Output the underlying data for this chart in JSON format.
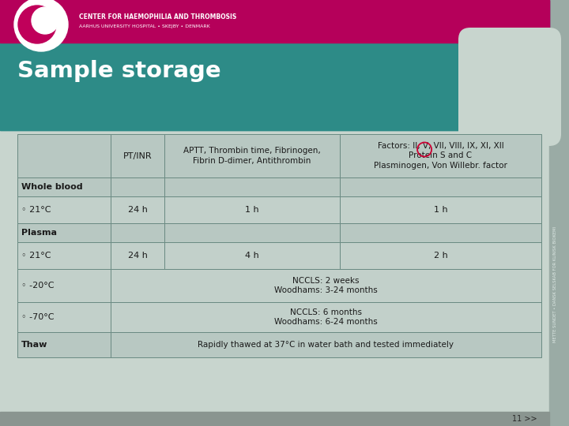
{
  "title": "Sample storage",
  "slide_bg": "#c8d5ce",
  "header_pink": "#b5005a",
  "teal_bg": "#2d8b87",
  "table_bg": "#c2d0ca",
  "header_row_bg": "#b8c8c2",
  "bold_row_bg": "#b8c8c2",
  "data_row_bg": "#c2d0ca",
  "border_color": "#6a8a82",
  "text_color": "#1a1a1a",
  "title_color": "#ffffff",
  "circle_color": "#cc0033",
  "footer_bg": "#8a9590",
  "footer_text": "11 >>",
  "sidebar_bg": "#9aaba5",
  "logo_pink": "#c0005a",
  "col_header_0": "PT/INR",
  "col_header_1": "APTT, Thrombin time, Fibrinogen,\nFibrin D-dimer, Antithrombin",
  "col_header_2": "Factors: II, V, VII, VIII, IX, XI, XII\nProtein S and C\nPlasminogen, Von Willebr. factor",
  "header_text1": "CENTER FOR HAEMOPHILIA AND THROMBOSIS",
  "header_text2": "AARHUS UNIVERSITY HOSPITAL • SKEJBY • DENMARK",
  "side_text": "METTE SUNDET • DANSK SELSKAB FOR KLINISK BIOKEMI",
  "rows": [
    {
      "label": "Whole blood",
      "bold": true,
      "span": false,
      "data": [
        "",
        "",
        ""
      ]
    },
    {
      "label": "◦ 21°C",
      "bold": false,
      "span": false,
      "data": [
        "24 h",
        "1 h",
        "1 h"
      ]
    },
    {
      "label": "Plasma",
      "bold": true,
      "span": false,
      "data": [
        "",
        "",
        ""
      ]
    },
    {
      "label": "◦ 21°C",
      "bold": false,
      "span": false,
      "data": [
        "24 h",
        "4 h",
        "2 h"
      ]
    },
    {
      "label": "◦ -20°C",
      "bold": false,
      "span": true,
      "data": [
        "NCCLS: 2 weeks\nWoodhams: 3-24 months"
      ]
    },
    {
      "label": "◦ -70°C",
      "bold": false,
      "span": true,
      "data": [
        "NCCLS: 6 months\nWoodhams: 6-24 months"
      ]
    },
    {
      "label": "Thaw",
      "bold": true,
      "span": true,
      "data": [
        "Rapidly thawed at 37°C in water bath and tested immediately"
      ]
    }
  ]
}
